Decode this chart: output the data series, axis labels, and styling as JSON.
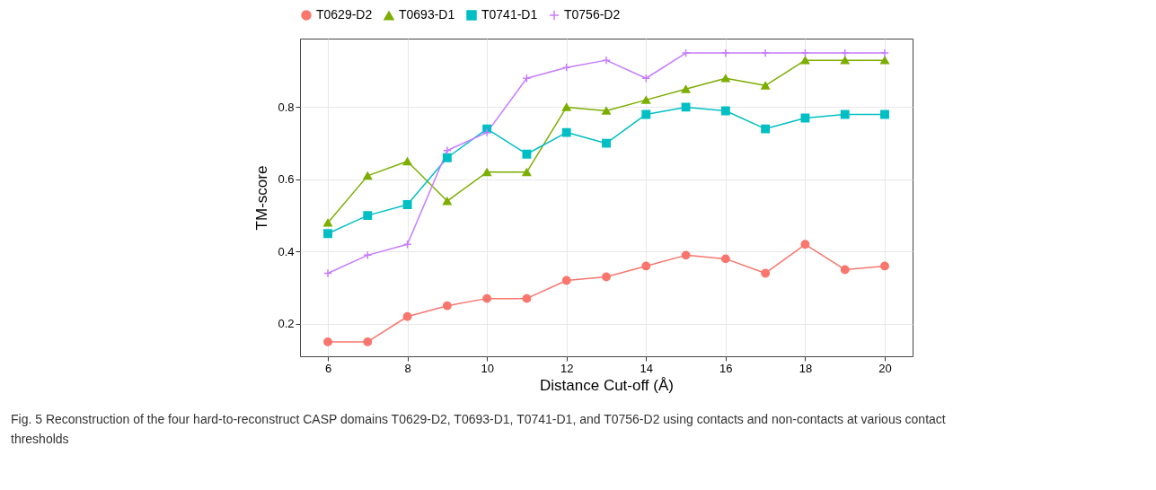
{
  "chart_data": {
    "type": "line",
    "xlabel": "Distance Cut-off (Å)",
    "ylabel": "TM-score",
    "x": [
      6,
      7,
      8,
      9,
      10,
      11,
      12,
      13,
      14,
      15,
      16,
      17,
      18,
      19,
      20
    ],
    "series": [
      {
        "name": "T0629-D2",
        "color": "#f8766d",
        "marker": "circle",
        "values": [
          0.15,
          0.15,
          0.22,
          0.25,
          0.27,
          0.27,
          0.32,
          0.33,
          0.36,
          0.39,
          0.38,
          0.34,
          0.42,
          0.35,
          0.36
        ]
      },
      {
        "name": "T0693-D1",
        "color": "#7cae00",
        "marker": "triangle",
        "values": [
          0.48,
          0.61,
          0.65,
          0.54,
          0.62,
          0.62,
          0.8,
          0.79,
          0.82,
          0.85,
          0.88,
          0.86,
          0.93,
          0.93,
          0.93
        ]
      },
      {
        "name": "T0741-D1",
        "color": "#00bfc4",
        "marker": "square",
        "values": [
          0.45,
          0.5,
          0.53,
          0.66,
          0.74,
          0.67,
          0.73,
          0.7,
          0.78,
          0.8,
          0.79,
          0.74,
          0.77,
          0.78,
          0.78
        ]
      },
      {
        "name": "T0756-D2",
        "color": "#c77cff",
        "marker": "cross",
        "values": [
          0.34,
          0.39,
          0.42,
          0.68,
          0.73,
          0.88,
          0.91,
          0.93,
          0.88,
          0.95,
          0.95,
          0.95,
          0.95,
          0.95,
          0.95
        ]
      }
    ],
    "xlim": [
      5.3,
      20.7
    ],
    "ylim": [
      0.11,
      0.99
    ],
    "xticks": [
      6,
      8,
      10,
      12,
      14,
      16,
      18,
      20
    ],
    "yticks": [
      0.2,
      0.4,
      0.6,
      0.8
    ],
    "grid": true,
    "legend": "top",
    "line_style": "solid",
    "annotations": [
      "Fig. 5 Reconstruction of the four hard-to-reconstruct CASP domains T0629-D2, T0693-D1, T0741-D1, and T0756-D2 using contacts and non-contacts at various contact thresholds"
    ]
  }
}
